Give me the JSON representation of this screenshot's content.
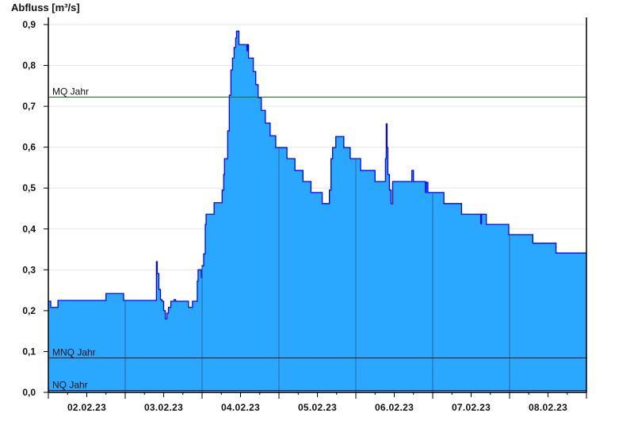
{
  "chart_data": {
    "type": "area",
    "ylabel": "Abfluss [m³/s]",
    "ylim": [
      0,
      0.9
    ],
    "xlim": [
      "2023-02-02T00:00",
      "2023-02-09T00:00"
    ],
    "grid": true,
    "y_ticks": [
      "0,0",
      "0,1",
      "0,2",
      "0,3",
      "0,4",
      "0,5",
      "0,6",
      "0,7",
      "0,8",
      "0,9"
    ],
    "x_ticks": [
      {
        "label": "02.02.23",
        "at": "2023-02-02T12:00"
      },
      {
        "label": "03.02.23",
        "at": "2023-02-03T12:00"
      },
      {
        "label": "04.02.23",
        "at": "2023-02-04T12:00"
      },
      {
        "label": "05.02.23",
        "at": "2023-02-05T12:00"
      },
      {
        "label": "06.02.23",
        "at": "2023-02-06T12:00"
      },
      {
        "label": "07.02.23",
        "at": "2023-02-07T12:00"
      },
      {
        "label": "08.02.23",
        "at": "2023-02-08T12:00"
      }
    ],
    "reference_lines": [
      {
        "name": "MQ Jahr",
        "value": 0.723,
        "color": "#1a6e1a"
      },
      {
        "name": "MNQ Jahr",
        "value": 0.085,
        "color": "#111111"
      },
      {
        "name": "NQ Jahr",
        "value": 0.006,
        "color": "#111111"
      }
    ],
    "colors": {
      "fill": "#2aa8ff",
      "line": "#0000ff",
      "day_lines": "#2b6690",
      "grid": "#e6e6e6"
    },
    "series": [
      {
        "x": [
          "2023-02-02T00:00",
          "2023-02-02T00:30",
          "2023-02-02T00:45",
          "2023-02-02T03:00",
          "2023-02-02T18:00",
          "2023-02-02T23:30",
          "2023-02-03T09:45",
          "2023-02-03T10:00",
          "2023-02-03T10:30",
          "2023-02-03T11:00",
          "2023-02-03T11:30",
          "2023-02-03T12:00",
          "2023-02-03T12:30",
          "2023-02-03T13:00",
          "2023-02-03T13:30",
          "2023-02-03T14:15",
          "2023-02-03T15:15",
          "2023-02-03T15:45",
          "2023-02-03T19:45",
          "2023-02-03T20:30",
          "2023-02-03T21:00",
          "2023-02-03T22:30",
          "2023-02-03T22:45",
          "2023-02-03T23:45",
          "2023-02-04T00:00",
          "2023-02-04T00:30",
          "2023-02-04T01:00",
          "2023-02-04T01:15",
          "2023-02-04T03:45",
          "2023-02-04T06:15",
          "2023-02-04T06:45",
          "2023-02-04T07:00",
          "2023-02-04T08:00",
          "2023-02-04T08:30",
          "2023-02-04T09:00",
          "2023-02-04T09:30",
          "2023-02-04T10:00",
          "2023-02-04T10:30",
          "2023-02-04T10:45",
          "2023-02-04T11:30",
          "2023-02-04T14:00",
          "2023-02-04T14:15",
          "2023-02-04T14:30",
          "2023-02-04T16:00",
          "2023-02-04T16:45",
          "2023-02-04T17:30",
          "2023-02-04T18:30",
          "2023-02-04T19:45",
          "2023-02-04T21:15",
          "2023-02-04T23:00",
          "2023-02-05T02:30",
          "2023-02-05T05:00",
          "2023-02-05T07:30",
          "2023-02-05T10:00",
          "2023-02-05T13:30",
          "2023-02-05T15:45",
          "2023-02-05T16:15",
          "2023-02-05T16:45",
          "2023-02-05T17:45",
          "2023-02-05T20:15",
          "2023-02-05T22:15",
          "2023-02-06T01:30",
          "2023-02-06T06:00",
          "2023-02-06T09:15",
          "2023-02-06T09:30",
          "2023-02-06T09:45",
          "2023-02-06T10:00",
          "2023-02-06T10:30",
          "2023-02-06T11:00",
          "2023-02-06T11:30",
          "2023-02-06T17:30",
          "2023-02-06T18:00",
          "2023-02-06T21:45",
          "2023-02-06T22:00",
          "2023-02-06T22:30",
          "2023-02-07T03:30",
          "2023-02-07T09:00",
          "2023-02-07T15:00",
          "2023-02-07T15:15",
          "2023-02-07T16:45",
          "2023-02-07T23:45",
          "2023-02-08T07:15",
          "2023-02-08T14:30",
          "2023-02-08T16:30",
          "2023-02-09T00:00"
        ],
        "y": [
          0.223,
          0.223,
          0.208,
          0.225,
          0.242,
          0.225,
          0.32,
          0.291,
          0.252,
          0.227,
          0.223,
          0.2,
          0.18,
          0.194,
          0.208,
          0.223,
          0.227,
          0.223,
          0.208,
          0.208,
          0.223,
          0.272,
          0.3,
          0.281,
          0.31,
          0.339,
          0.411,
          0.436,
          0.464,
          0.495,
          0.533,
          0.572,
          0.64,
          0.727,
          0.789,
          0.818,
          0.844,
          0.867,
          0.884,
          0.851,
          0.836,
          0.851,
          0.818,
          0.785,
          0.753,
          0.721,
          0.69,
          0.659,
          0.628,
          0.599,
          0.572,
          0.543,
          0.516,
          0.489,
          0.462,
          0.495,
          0.572,
          0.599,
          0.626,
          0.599,
          0.572,
          0.543,
          0.516,
          0.572,
          0.657,
          0.599,
          0.533,
          0.495,
          0.462,
          0.516,
          0.543,
          0.516,
          0.489,
          0.514,
          0.489,
          0.462,
          0.436,
          0.413,
          0.436,
          0.411,
          0.386,
          0.365,
          0.341,
          0.341,
          0.341
        ]
      }
    ]
  }
}
